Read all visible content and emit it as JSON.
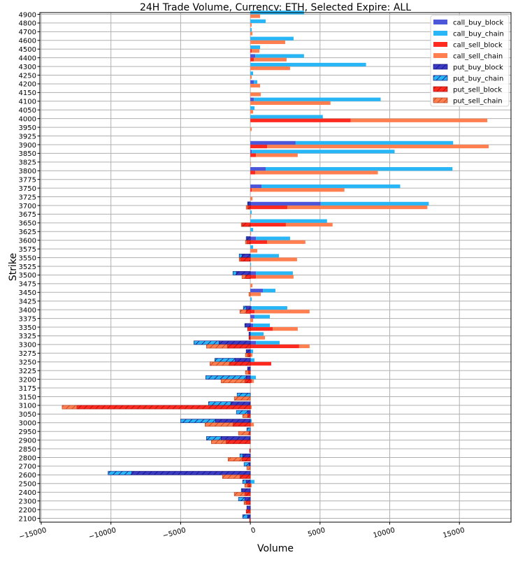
{
  "chart_data": {
    "type": "bar",
    "orientation": "horizontal",
    "stacked": true,
    "title": "24H Trade Volume, Currency: ETH, Selected Expire: ALL",
    "xlabel": "Volume",
    "ylabel": "Strike",
    "xlim": [
      -15100,
      18700
    ],
    "xticks": [
      -15000,
      -10000,
      -5000,
      0,
      5000,
      10000,
      15000
    ],
    "xtick_labels": [
      "−15000",
      "−10000",
      "−5000",
      "0",
      "5000",
      "10000",
      "15000"
    ],
    "grid": true,
    "legend_position": "top-right",
    "categories": [
      "4900",
      "4800",
      "4700",
      "4600",
      "4500",
      "4400",
      "4300",
      "4250",
      "4200",
      "4150",
      "4100",
      "4050",
      "4000",
      "3950",
      "3925",
      "3900",
      "3850",
      "3825",
      "3800",
      "3775",
      "3750",
      "3725",
      "3700",
      "3675",
      "3650",
      "3625",
      "3600",
      "3575",
      "3550",
      "3525",
      "3500",
      "3475",
      "3450",
      "3425",
      "3400",
      "3375",
      "3350",
      "3325",
      "3300",
      "3275",
      "3250",
      "3225",
      "3200",
      "3175",
      "3150",
      "3100",
      "3050",
      "3000",
      "2950",
      "2900",
      "2850",
      "2800",
      "2700",
      "2600",
      "2500",
      "2400",
      "2300",
      "2200",
      "2100"
    ],
    "series": [
      {
        "name": "call_buy_block",
        "color": "#4b56d8",
        "hatch": false,
        "group": "buy",
        "values": [
          0,
          0,
          0,
          0,
          0,
          350,
          0,
          0,
          250,
          0,
          250,
          0,
          0,
          0,
          0,
          3250,
          100,
          0,
          1100,
          0,
          800,
          0,
          5050,
          0,
          0,
          0,
          400,
          0,
          0,
          0,
          400,
          0,
          900,
          0,
          100,
          300,
          200,
          0,
          400,
          0,
          0,
          0,
          0,
          0,
          0,
          0,
          0,
          0,
          0,
          0,
          0,
          0,
          0,
          0,
          0,
          0,
          0,
          0,
          0
        ]
      },
      {
        "name": "call_buy_chain",
        "color": "#29b6f6",
        "hatch": false,
        "group": "buy",
        "values": [
          3850,
          1100,
          100,
          3100,
          700,
          3500,
          8300,
          200,
          250,
          0,
          9100,
          300,
          5200,
          0,
          0,
          11300,
          10250,
          0,
          13400,
          0,
          9950,
          0,
          7750,
          100,
          5500,
          200,
          2450,
          200,
          2050,
          50,
          2650,
          0,
          900,
          100,
          2550,
          1100,
          1200,
          950,
          1700,
          200,
          300,
          0,
          400,
          0,
          0,
          0,
          0,
          100,
          0,
          0,
          0,
          0,
          0,
          0,
          300,
          0,
          0,
          0,
          0
        ]
      },
      {
        "name": "call_sell_block",
        "color": "#ff2a1f",
        "hatch": false,
        "group": "sell",
        "values": [
          0,
          0,
          0,
          0,
          100,
          250,
          0,
          0,
          0,
          0,
          0,
          0,
          7200,
          0,
          0,
          1200,
          400,
          0,
          350,
          0,
          100,
          0,
          2650,
          0,
          2550,
          0,
          1200,
          0,
          0,
          0,
          400,
          0,
          0,
          0,
          300,
          0,
          1600,
          0,
          3500,
          0,
          1500,
          0,
          100,
          0,
          0,
          0,
          0,
          0,
          0,
          0,
          0,
          0,
          0,
          0,
          0,
          0,
          0,
          0,
          0
        ]
      },
      {
        "name": "call_sell_chain",
        "color": "#ff7f50",
        "hatch": false,
        "group": "sell",
        "values": [
          700,
          100,
          150,
          2500,
          550,
          2350,
          2850,
          100,
          700,
          750,
          5750,
          200,
          9800,
          100,
          0,
          15900,
          3000,
          30,
          8800,
          0,
          6650,
          150,
          10050,
          50,
          3350,
          50,
          2750,
          500,
          3350,
          50,
          2700,
          150,
          750,
          0,
          3950,
          200,
          1800,
          1050,
          750,
          150,
          0,
          0,
          150,
          0,
          0,
          100,
          0,
          250,
          0,
          0,
          0,
          0,
          0,
          0,
          100,
          0,
          0,
          0,
          0
        ]
      },
      {
        "name": "put_buy_block",
        "color": "#3a3ac4",
        "hatch": true,
        "group": "buy",
        "values": [
          0,
          0,
          0,
          0,
          0,
          0,
          0,
          0,
          0,
          0,
          0,
          0,
          0,
          0,
          0,
          0,
          0,
          0,
          0,
          0,
          0,
          0,
          -150,
          0,
          0,
          0,
          -250,
          0,
          -600,
          0,
          -1000,
          0,
          0,
          0,
          -300,
          0,
          -350,
          -100,
          -2250,
          -300,
          -1100,
          -200,
          -300,
          0,
          0,
          -1400,
          -200,
          -2500,
          0,
          -2100,
          0,
          -550,
          -100,
          -8500,
          -300,
          -600,
          -400,
          -250,
          -200
        ]
      },
      {
        "name": "put_buy_chain",
        "color": "#29b6f6",
        "hatch": true,
        "group": "buy",
        "values": [
          0,
          0,
          0,
          0,
          0,
          0,
          0,
          0,
          0,
          0,
          0,
          0,
          0,
          0,
          0,
          0,
          0,
          0,
          0,
          0,
          0,
          0,
          -50,
          0,
          0,
          0,
          -50,
          0,
          -200,
          0,
          -250,
          0,
          0,
          0,
          -200,
          0,
          -50,
          0,
          -1800,
          0,
          -1450,
          0,
          -2900,
          0,
          -950,
          -1600,
          -800,
          -2500,
          -250,
          -1050,
          0,
          -200,
          -350,
          -1700,
          -250,
          -50,
          -450,
          0,
          -350
        ]
      },
      {
        "name": "put_sell_block",
        "color": "#ff2a1f",
        "hatch": true,
        "group": "sell",
        "values": [
          0,
          0,
          0,
          0,
          0,
          0,
          0,
          0,
          0,
          0,
          0,
          0,
          0,
          0,
          0,
          0,
          0,
          0,
          0,
          0,
          0,
          0,
          -200,
          0,
          -600,
          0,
          -250,
          0,
          -700,
          0,
          -350,
          0,
          0,
          0,
          -300,
          0,
          -200,
          -100,
          -1650,
          -200,
          -1500,
          -150,
          -400,
          0,
          0,
          -12450,
          -200,
          -1250,
          -100,
          -1750,
          -50,
          -600,
          0,
          -750,
          -200,
          -400,
          -300,
          -300,
          -50
        ]
      },
      {
        "name": "put_sell_chain",
        "color": "#ff7f50",
        "hatch": true,
        "group": "sell",
        "values": [
          0,
          0,
          0,
          0,
          0,
          0,
          0,
          0,
          0,
          0,
          0,
          0,
          0,
          0,
          0,
          0,
          0,
          0,
          0,
          0,
          0,
          0,
          -100,
          0,
          -50,
          0,
          -100,
          0,
          -100,
          0,
          -250,
          0,
          -100,
          0,
          -450,
          0,
          0,
          0,
          -1500,
          -150,
          -1400,
          -200,
          -1700,
          0,
          -1150,
          -1050,
          -350,
          -2000,
          -750,
          -1050,
          0,
          -1000,
          -250,
          -1250,
          -200,
          -750,
          -150,
          0,
          0
        ]
      }
    ]
  }
}
